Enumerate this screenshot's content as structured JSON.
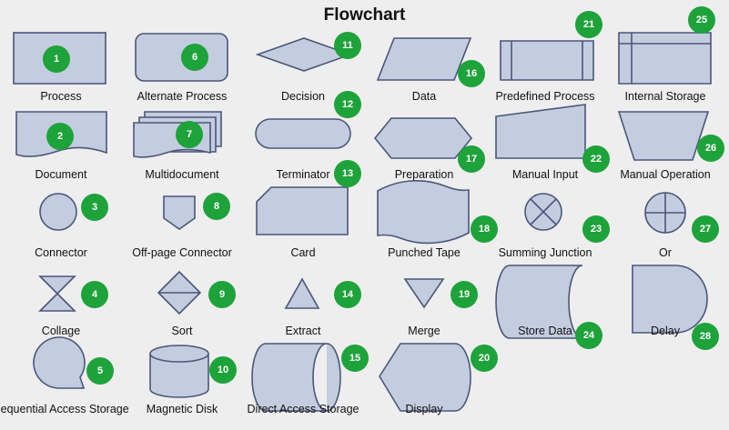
{
  "title": "Flowchart",
  "colors": {
    "shape_fill": "#c4cde0",
    "shape_stroke": "#4a5779",
    "badge": "#1ea23a",
    "background": "#eeeeef"
  },
  "shapes": [
    {
      "num": "1",
      "label": "Process"
    },
    {
      "num": "2",
      "label": "Document"
    },
    {
      "num": "3",
      "label": "Connector"
    },
    {
      "num": "4",
      "label": "Collage"
    },
    {
      "num": "5",
      "label": "Sequential Access Storage"
    },
    {
      "num": "6",
      "label": "Alternate Process"
    },
    {
      "num": "7",
      "label": "Multidocument"
    },
    {
      "num": "8",
      "label": "Off-page Connector"
    },
    {
      "num": "9",
      "label": "Sort"
    },
    {
      "num": "10",
      "label": "Magnetic Disk"
    },
    {
      "num": "11",
      "label": "Decision"
    },
    {
      "num": "12",
      "label": "Terminator"
    },
    {
      "num": "13",
      "label": "Card"
    },
    {
      "num": "14",
      "label": "Extract"
    },
    {
      "num": "15",
      "label": "Direct Access Storage"
    },
    {
      "num": "16",
      "label": "Data"
    },
    {
      "num": "17",
      "label": "Preparation"
    },
    {
      "num": "18",
      "label": "Punched Tape"
    },
    {
      "num": "19",
      "label": "Merge"
    },
    {
      "num": "20",
      "label": "Display"
    },
    {
      "num": "21",
      "label": "Predefined Process"
    },
    {
      "num": "22",
      "label": "Manual Input"
    },
    {
      "num": "23",
      "label": "Summing Junction"
    },
    {
      "num": "24",
      "label": "Store Data"
    },
    {
      "num": "25",
      "label": "Internal Storage"
    },
    {
      "num": "26",
      "label": "Manual Operation"
    },
    {
      "num": "27",
      "label": "Or"
    },
    {
      "num": "28",
      "label": "Delay"
    }
  ]
}
